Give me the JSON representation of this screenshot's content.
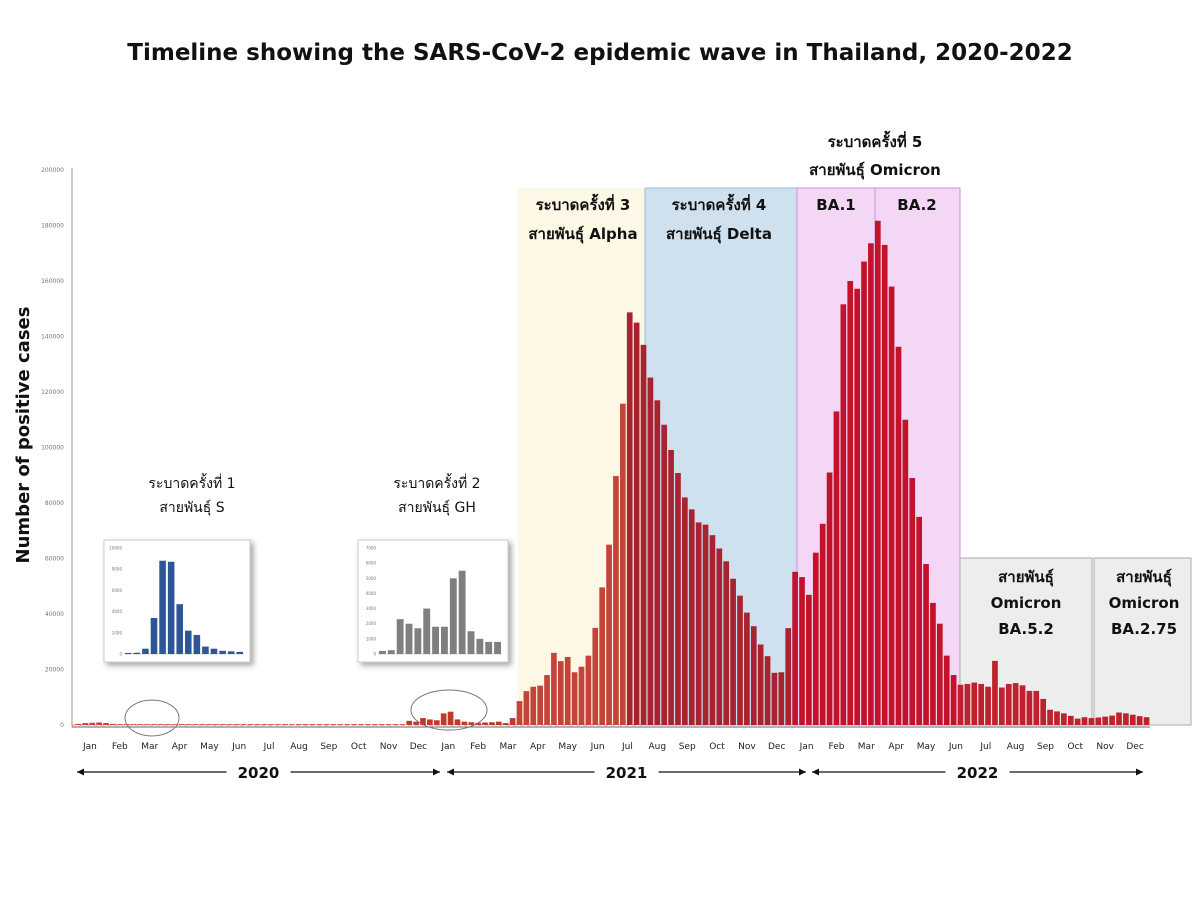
{
  "chart_data": {
    "type": "bar",
    "title": "Timeline showing the SARS-CoV-2 epidemic wave in Thailand, 2020-2022",
    "ylabel": "Number of positive cases",
    "ylim": [
      0,
      200000
    ],
    "y_ticks": [
      "0",
      "20000",
      "40000",
      "60000",
      "80000",
      "100000",
      "120000",
      "140000",
      "160000",
      "180000",
      "200000"
    ],
    "months": [
      "Jan",
      "Feb",
      "Mar",
      "Apr",
      "May",
      "Jun",
      "Jul",
      "Aug",
      "Sep",
      "Oct",
      "Nov",
      "Dec",
      "Jan",
      "Feb",
      "Mar",
      "Apr",
      "May",
      "Jun",
      "Jul",
      "Aug",
      "Sep",
      "Oct",
      "Nov",
      "Dec",
      "Jan",
      "Feb",
      "Mar",
      "Apr",
      "May",
      "Jun",
      "Jul",
      "Aug",
      "Sep",
      "Oct",
      "Nov",
      "Dec"
    ],
    "years": [
      "2020",
      "2021",
      "2022"
    ],
    "weekly_cases": [
      400,
      700,
      800,
      900,
      700,
      400,
      300,
      300,
      300,
      300,
      300,
      300,
      300,
      300,
      300,
      300,
      300,
      300,
      300,
      300,
      300,
      300,
      300,
      300,
      300,
      300,
      300,
      300,
      300,
      300,
      300,
      300,
      300,
      300,
      300,
      300,
      300,
      300,
      300,
      300,
      300,
      300,
      300,
      300,
      300,
      300,
      300,
      300,
      1500,
      1200,
      2500,
      2000,
      1700,
      4200,
      4800,
      2000,
      1200,
      1000,
      800,
      900,
      1000,
      1200,
      700,
      2500,
      8600,
      12200,
      13800,
      14200,
      18000,
      26000,
      23000,
      24500,
      19000,
      21000,
      25000,
      35000,
      49600,
      65000,
      89700,
      115800,
      148700,
      145000,
      137000,
      125200,
      117000,
      108200,
      99100,
      90800,
      82000,
      77700,
      73000,
      72200,
      68400,
      63600,
      59000,
      52700,
      46600,
      40500,
      35600,
      29000,
      24800,
      18800,
      19000,
      34900,
      55200,
      53300,
      46900,
      62100,
      72500,
      91000,
      113000,
      151600,
      160000,
      157200,
      167000,
      173600,
      181700,
      173000,
      158000,
      136300,
      110000,
      89000,
      75000,
      58000,
      44000,
      36500,
      25000,
      18000,
      14500,
      14800,
      15300,
      14800,
      13800,
      23100,
      13500,
      14800,
      15100,
      14300,
      12300,
      12300,
      9400,
      5500,
      4900,
      4200,
      3300,
      2300,
      2800,
      2500,
      2700,
      3000,
      3400,
      4500,
      4200,
      3700,
      3200,
      2800
    ],
    "waves": [
      {
        "label": "ระบาดครั้งที่ 1",
        "variant": "สายพันธุ์ S"
      },
      {
        "label": "ระบาดครั้งที่ 2",
        "variant": "สายพันธุ์ GH"
      },
      {
        "label": "ระบาดครั้งที่ 3",
        "variant": "สายพันธุ์ Alpha"
      },
      {
        "label": "ระบาดครั้งที่ 4",
        "variant": "สายพันธุ์ Delta"
      },
      {
        "label": "ระบาดครั้งที่ 5",
        "variant": "สายพันธุ์ Omicron",
        "sub": [
          "BA.1",
          "BA.2"
        ]
      },
      {
        "variant_lines": [
          "สายพันธุ์",
          "Omicron",
          "BA.5.2"
        ]
      },
      {
        "variant_lines": [
          "สายพันธุ์",
          "Omicron",
          "BA.2.75"
        ]
      }
    ],
    "insets": [
      {
        "name": "wave-1-inset",
        "color": "#2e5597",
        "ylim": [
          0,
          10000
        ],
        "y_ticks": [
          "10000",
          "8000",
          "6000",
          "4000",
          "2000",
          "0"
        ],
        "values": [
          100,
          120,
          500,
          3400,
          8800,
          8700,
          4700,
          2200,
          1800,
          700,
          500,
          300,
          250,
          200
        ]
      },
      {
        "name": "wave-2-inset",
        "color": "#7f7f7f",
        "ylim": [
          0,
          7000
        ],
        "y_ticks": [
          "7000",
          "6000",
          "5000",
          "4000",
          "3000",
          "2000",
          "1000",
          "0"
        ],
        "values": [
          200,
          250,
          2300,
          2000,
          1700,
          3000,
          1800,
          1800,
          5000,
          5500,
          1500,
          1000,
          800,
          800
        ]
      }
    ]
  }
}
